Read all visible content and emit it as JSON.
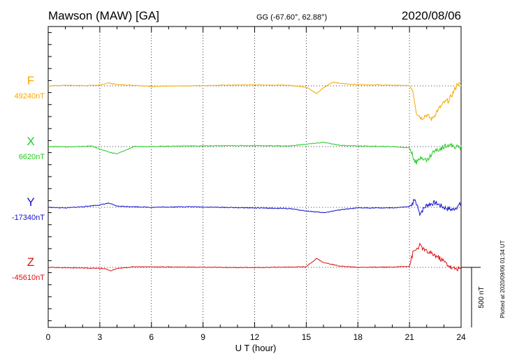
{
  "header": {
    "station": "Mawson (MAW)  [GA]",
    "coords": "GG (-67.60°,  62.88°)",
    "date": "2020/08/06"
  },
  "footer": {
    "plotted": "Plotted at 2020/09/06 01:34 UT",
    "scale": "500 nT"
  },
  "chart_data": {
    "type": "line",
    "xlabel": "U T (hour)",
    "xlim": [
      0,
      24
    ],
    "xticks": [
      0,
      3,
      6,
      9,
      12,
      15,
      18,
      21,
      24
    ],
    "scale_bar_nT": 500,
    "series": [
      {
        "name": "F",
        "baseline_label": "49240nT",
        "baseline": 49240,
        "color": "#f5a800",
        "points": [
          [
            0,
            49240
          ],
          [
            1,
            49245
          ],
          [
            2,
            49242
          ],
          [
            3,
            49246
          ],
          [
            3.5,
            49265
          ],
          [
            4,
            49250
          ],
          [
            5,
            49245
          ],
          [
            6,
            49235
          ],
          [
            8,
            49240
          ],
          [
            10,
            49245
          ],
          [
            12,
            49248
          ],
          [
            14,
            49245
          ],
          [
            15,
            49230
          ],
          [
            15.6,
            49175
          ],
          [
            16,
            49225
          ],
          [
            16.5,
            49270
          ],
          [
            17,
            49260
          ],
          [
            18,
            49250
          ],
          [
            20,
            49245
          ],
          [
            21,
            49242
          ],
          [
            21.2,
            49200
          ],
          [
            21.4,
            49020
          ],
          [
            21.7,
            48970
          ],
          [
            22,
            49000
          ],
          [
            22.3,
            48960
          ],
          [
            22.6,
            49030
          ],
          [
            23,
            49100
          ],
          [
            23.3,
            49120
          ],
          [
            23.6,
            49200
          ],
          [
            23.8,
            49260
          ],
          [
            24,
            49240
          ]
        ]
      },
      {
        "name": "X",
        "baseline_label": "6620nT",
        "baseline": 6620,
        "color": "#22cc22",
        "points": [
          [
            0,
            6620
          ],
          [
            1.5,
            6618
          ],
          [
            2.5,
            6625
          ],
          [
            3.5,
            6575
          ],
          [
            4,
            6560
          ],
          [
            4.5,
            6590
          ],
          [
            5,
            6620
          ],
          [
            8,
            6625
          ],
          [
            12,
            6628
          ],
          [
            14,
            6625
          ],
          [
            15,
            6640
          ],
          [
            16,
            6655
          ],
          [
            17,
            6630
          ],
          [
            18,
            6625
          ],
          [
            20,
            6620
          ],
          [
            21,
            6610
          ],
          [
            21.2,
            6540
          ],
          [
            21.4,
            6480
          ],
          [
            21.7,
            6540
          ],
          [
            22,
            6500
          ],
          [
            22.4,
            6580
          ],
          [
            22.8,
            6600
          ],
          [
            23.2,
            6640
          ],
          [
            23.6,
            6620
          ],
          [
            24,
            6615
          ]
        ]
      },
      {
        "name": "Y",
        "baseline_label": "-17340nT",
        "baseline": -17340,
        "color": "#1010cc",
        "points": [
          [
            0,
            -17340
          ],
          [
            1,
            -17345
          ],
          [
            2,
            -17335
          ],
          [
            3,
            -17320
          ],
          [
            3.5,
            -17305
          ],
          [
            4,
            -17330
          ],
          [
            6,
            -17340
          ],
          [
            8,
            -17335
          ],
          [
            10,
            -17340
          ],
          [
            12,
            -17345
          ],
          [
            14,
            -17350
          ],
          [
            15,
            -17370
          ],
          [
            16,
            -17385
          ],
          [
            17,
            -17360
          ],
          [
            18,
            -17345
          ],
          [
            20,
            -17345
          ],
          [
            21,
            -17335
          ],
          [
            21.3,
            -17280
          ],
          [
            21.6,
            -17390
          ],
          [
            22,
            -17320
          ],
          [
            22.5,
            -17300
          ],
          [
            23,
            -17340
          ],
          [
            23.5,
            -17360
          ],
          [
            24,
            -17310
          ]
        ]
      },
      {
        "name": "Z",
        "baseline_label": "-45610nT",
        "baseline": -45610,
        "color": "#dd1111",
        "points": [
          [
            0,
            -45610
          ],
          [
            2,
            -45615
          ],
          [
            3.3,
            -45620
          ],
          [
            3.6,
            -45640
          ],
          [
            4,
            -45620
          ],
          [
            5,
            -45605
          ],
          [
            8,
            -45608
          ],
          [
            12,
            -45612
          ],
          [
            15,
            -45605
          ],
          [
            15.6,
            -45535
          ],
          [
            16,
            -45570
          ],
          [
            17,
            -45600
          ],
          [
            18,
            -45610
          ],
          [
            20,
            -45608
          ],
          [
            21,
            -45600
          ],
          [
            21.2,
            -45490
          ],
          [
            21.6,
            -45430
          ],
          [
            22,
            -45480
          ],
          [
            22.5,
            -45510
          ],
          [
            23,
            -45560
          ],
          [
            23.5,
            -45620
          ],
          [
            24,
            -45620
          ]
        ]
      }
    ]
  }
}
